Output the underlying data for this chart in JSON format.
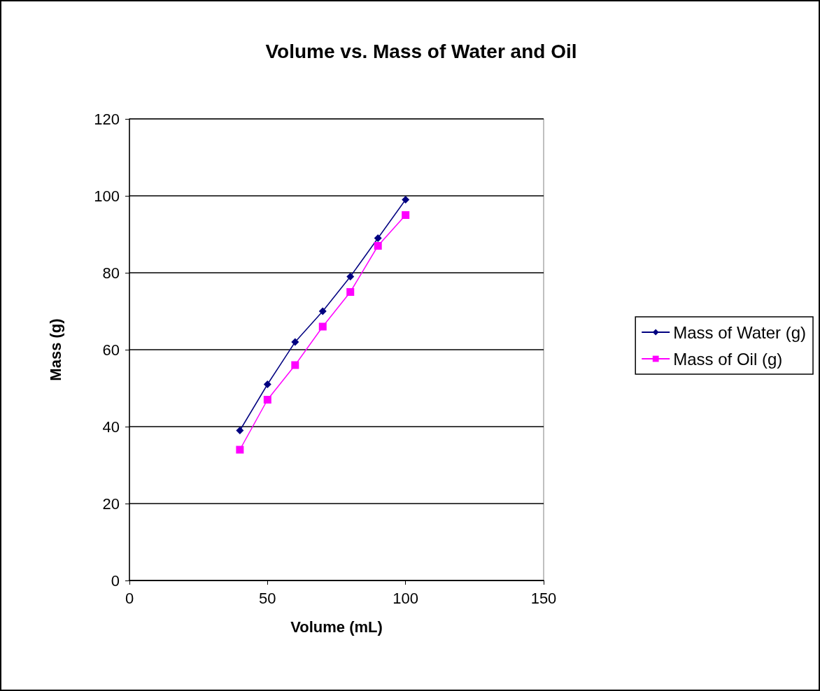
{
  "chart_data": {
    "type": "line",
    "title": "Volume vs. Mass of Water and Oil",
    "xlabel": "Volume (mL)",
    "ylabel": "Mass (g)",
    "xlim": [
      0,
      150
    ],
    "xticks": [
      0,
      50,
      100,
      150
    ],
    "ylim": [
      0,
      120
    ],
    "yticks": [
      0,
      20,
      40,
      60,
      80,
      100,
      120
    ],
    "grid": "y",
    "legend": "right",
    "series": [
      {
        "name": "Mass of Water (g)",
        "color": "#000080",
        "marker": "diamond",
        "x": [
          40,
          50,
          60,
          70,
          80,
          90,
          100
        ],
        "values": [
          39,
          51,
          62,
          70,
          79,
          89,
          99
        ]
      },
      {
        "name": "Mass of Oil (g)",
        "color": "#ff00ff",
        "marker": "square",
        "x": [
          40,
          50,
          60,
          70,
          80,
          90,
          100
        ],
        "values": [
          34,
          47,
          56,
          66,
          75,
          87,
          95
        ]
      }
    ]
  }
}
